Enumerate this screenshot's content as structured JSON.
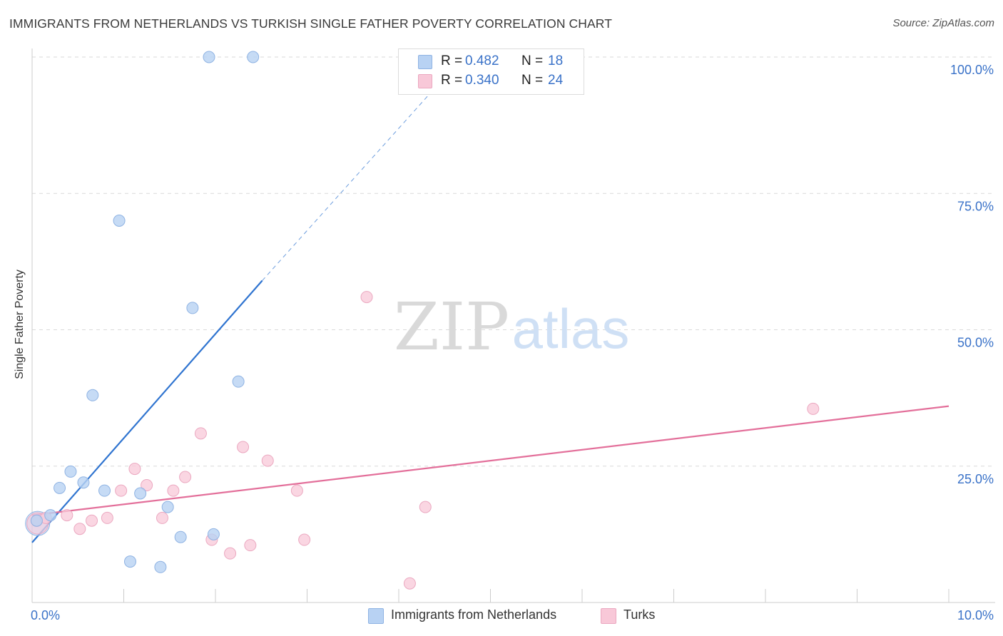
{
  "title": "IMMIGRANTS FROM NETHERLANDS VS TURKISH SINGLE FATHER POVERTY CORRELATION CHART",
  "source": "Source: ZipAtlas.com",
  "watermark": {
    "zip": "ZIP",
    "atlas": "atlas"
  },
  "legend": {
    "r_label": "R =",
    "n_label": "N =",
    "series": [
      {
        "name": "Immigrants from Netherlands",
        "r": "0.482",
        "n": "18"
      },
      {
        "name": "Turks",
        "r": "0.340",
        "n": "24"
      }
    ]
  },
  "colors": {
    "blue_fill": "#b8d2f3",
    "blue_stroke": "#8fb3e3",
    "blue_line": "#2f74d0",
    "pink_fill": "#f8c8d8",
    "pink_stroke": "#eba8c0",
    "pink_line": "#e36f9a",
    "grid": "#d9d9d9",
    "tick_label": "#3a72c8"
  },
  "chart_data": {
    "type": "scatter",
    "title": "IMMIGRANTS FROM NETHERLANDS VS TURKISH SINGLE FATHER POVERTY CORRELATION CHART",
    "xlabel": "",
    "ylabel": "Single Father Poverty",
    "xlim": [
      0,
      10
    ],
    "ylim": [
      0,
      100
    ],
    "x_tick_labels": [
      "0.0%",
      "10.0%"
    ],
    "y_ticks": [
      25,
      50,
      75,
      100
    ],
    "y_tick_labels": [
      "25.0%",
      "50.0%",
      "75.0%",
      "100.0%"
    ],
    "grid": true,
    "series": [
      {
        "name": "Immigrants from Netherlands",
        "color": "#b8d2f3",
        "r": 0.482,
        "n": 18,
        "points": [
          {
            "x": 0.05,
            "y": 15.0
          },
          {
            "x": 0.2,
            "y": 16.0
          },
          {
            "x": 0.3,
            "y": 21.0
          },
          {
            "x": 0.42,
            "y": 24.0
          },
          {
            "x": 0.56,
            "y": 22.0
          },
          {
            "x": 0.66,
            "y": 38.0
          },
          {
            "x": 0.79,
            "y": 20.5
          },
          {
            "x": 0.95,
            "y": 70.0
          },
          {
            "x": 1.07,
            "y": 7.5
          },
          {
            "x": 1.18,
            "y": 20.0
          },
          {
            "x": 1.4,
            "y": 6.5
          },
          {
            "x": 1.48,
            "y": 17.5
          },
          {
            "x": 1.62,
            "y": 12.0
          },
          {
            "x": 1.75,
            "y": 54.0
          },
          {
            "x": 1.93,
            "y": 100.0
          },
          {
            "x": 1.98,
            "y": 12.5
          },
          {
            "x": 2.25,
            "y": 40.5
          },
          {
            "x": 2.41,
            "y": 100.0
          }
        ],
        "trend": {
          "x0": 0.0,
          "y0": 11.0,
          "x1": 2.51,
          "y1": 59.0,
          "dashed_to_x": 4.35,
          "dashed_to_y": 93.5
        }
      },
      {
        "name": "Turks",
        "color": "#f8c8d8",
        "r": 0.34,
        "n": 24,
        "points": [
          {
            "x": 0.05,
            "y": 15.0
          },
          {
            "x": 0.15,
            "y": 15.5
          },
          {
            "x": 0.38,
            "y": 16.0
          },
          {
            "x": 0.52,
            "y": 13.5
          },
          {
            "x": 0.65,
            "y": 15.0
          },
          {
            "x": 0.82,
            "y": 15.5
          },
          {
            "x": 0.97,
            "y": 20.5
          },
          {
            "x": 1.12,
            "y": 24.5
          },
          {
            "x": 1.25,
            "y": 21.5
          },
          {
            "x": 1.42,
            "y": 15.5
          },
          {
            "x": 1.54,
            "y": 20.5
          },
          {
            "x": 1.67,
            "y": 23.0
          },
          {
            "x": 1.84,
            "y": 31.0
          },
          {
            "x": 1.96,
            "y": 11.5
          },
          {
            "x": 2.16,
            "y": 9.0
          },
          {
            "x": 2.3,
            "y": 28.5
          },
          {
            "x": 2.38,
            "y": 10.5
          },
          {
            "x": 2.57,
            "y": 26.0
          },
          {
            "x": 2.89,
            "y": 20.5
          },
          {
            "x": 2.97,
            "y": 11.5
          },
          {
            "x": 3.65,
            "y": 56.0
          },
          {
            "x": 4.12,
            "y": 3.5
          },
          {
            "x": 4.29,
            "y": 17.5
          },
          {
            "x": 8.52,
            "y": 35.5
          }
        ],
        "trend": {
          "x0": 0.0,
          "y0": 16.0,
          "x1": 10.0,
          "y1": 36.0
        }
      }
    ]
  }
}
